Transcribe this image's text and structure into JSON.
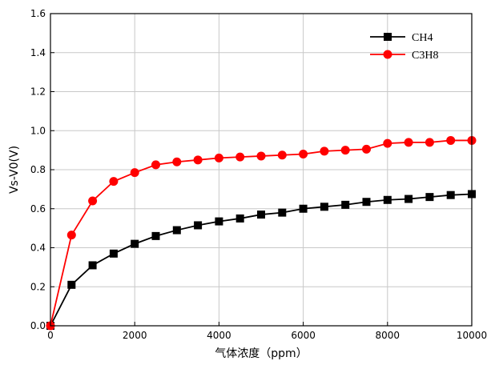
{
  "chart_data": {
    "type": "line",
    "xlabel": "气体浓度（ppm）",
    "ylabel": "Vs-V0(V)",
    "xlim": [
      0,
      10000
    ],
    "ylim": [
      0,
      1.6
    ],
    "x_ticks": [
      "0",
      "2000",
      "4000",
      "6000",
      "8000",
      "10000"
    ],
    "y_ticks": [
      "0.0",
      "0.2",
      "0.4",
      "0.6",
      "0.8",
      "1.0",
      "1.2",
      "1.4",
      "1.6"
    ],
    "grid": true,
    "legend_position": "top-right",
    "x": [
      0,
      500,
      1000,
      1500,
      2000,
      2500,
      3000,
      3500,
      4000,
      4500,
      5000,
      5500,
      6000,
      6500,
      7000,
      7500,
      8000,
      8500,
      9000,
      9500,
      10000
    ],
    "series": [
      {
        "name": "CH4",
        "marker": "square",
        "color": "#000000",
        "values": [
          0.0,
          0.21,
          0.31,
          0.37,
          0.42,
          0.46,
          0.49,
          0.515,
          0.535,
          0.55,
          0.57,
          0.58,
          0.6,
          0.61,
          0.62,
          0.635,
          0.645,
          0.65,
          0.66,
          0.67,
          0.675
        ]
      },
      {
        "name": "C3H8",
        "marker": "circle",
        "color": "#ff0000",
        "values": [
          0.0,
          0.465,
          0.64,
          0.74,
          0.785,
          0.825,
          0.84,
          0.85,
          0.86,
          0.865,
          0.87,
          0.875,
          0.88,
          0.895,
          0.9,
          0.905,
          0.935,
          0.94,
          0.94,
          0.95,
          0.95
        ]
      }
    ]
  }
}
